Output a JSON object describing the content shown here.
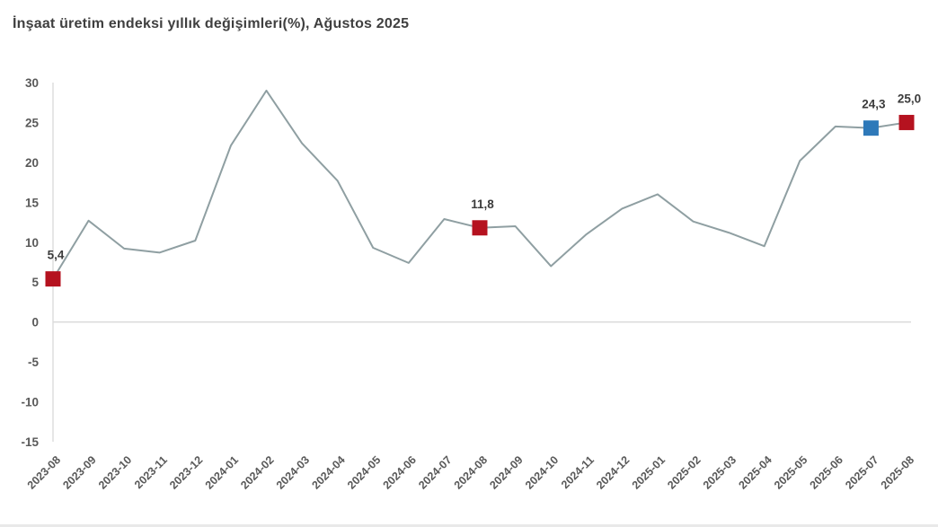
{
  "title": "İnşaat üretim endeksi yıllık değişimleri(%), Ağustos 2025",
  "chart_data": {
    "type": "line",
    "title": "İnşaat üretim endeksi yıllık değişimleri(%), Ağustos 2025",
    "xlabel": "",
    "ylabel": "",
    "ylim": [
      -15,
      30
    ],
    "y_ticks": [
      30,
      25,
      20,
      15,
      10,
      5,
      0,
      -5,
      -10,
      -15
    ],
    "grid": "zero-line-only",
    "legend": "none",
    "line_color": "#8f9fa2",
    "axis_color": "#d9d9d9",
    "tick_label_color": "#595959",
    "point_label_color": "#3b3b3b",
    "categories": [
      "2023-08",
      "2023-09",
      "2023-10",
      "2023-11",
      "2023-12",
      "2024-01",
      "2024-02",
      "2024-03",
      "2024-04",
      "2024-05",
      "2024-06",
      "2024-07",
      "2024-08",
      "2024-09",
      "2024-10",
      "2024-11",
      "2024-12",
      "2025-01",
      "2025-02",
      "2025-03",
      "2025-04",
      "2025-05",
      "2025-06",
      "2025-07",
      "2025-08"
    ],
    "values": [
      5.4,
      12.7,
      9.2,
      8.7,
      10.2,
      22.1,
      29.0,
      22.4,
      17.7,
      9.3,
      7.4,
      12.9,
      11.8,
      12.0,
      7.0,
      11.0,
      14.2,
      16.0,
      12.6,
      11.2,
      9.5,
      20.2,
      24.5,
      24.3,
      25.0
    ],
    "labeled_points": [
      {
        "category": "2023-08",
        "value": 5.4,
        "label": "5,4",
        "marker_color": "#b5121f"
      },
      {
        "category": "2024-08",
        "value": 11.8,
        "label": "11,8",
        "marker_color": "#b5121f"
      },
      {
        "category": "2025-07",
        "value": 24.3,
        "label": "24,3",
        "marker_color": "#2e79b9"
      },
      {
        "category": "2025-08",
        "value": 25.0,
        "label": "25,0",
        "marker_color": "#b5121f"
      }
    ]
  }
}
